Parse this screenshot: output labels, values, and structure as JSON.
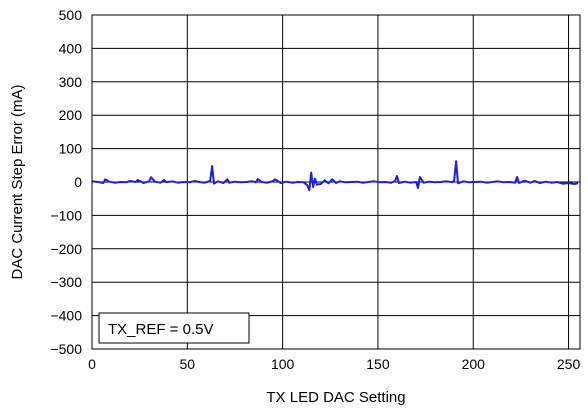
{
  "chart_data": {
    "type": "line",
    "title": "",
    "xlabel": "TX LED DAC Setting",
    "ylabel": "DAC Current Step Error (mA)",
    "xlim": [
      0,
      256
    ],
    "ylim": [
      -500,
      500
    ],
    "x_ticks": [
      0,
      50,
      100,
      150,
      200,
      250
    ],
    "x_tick_labels": [
      "0",
      "50",
      "100",
      "150",
      "200",
      "250"
    ],
    "y_ticks": [
      -500,
      -400,
      -300,
      -200,
      -100,
      0,
      100,
      200,
      300,
      400,
      500
    ],
    "y_tick_labels": [
      "−500",
      "−400",
      "−300",
      "−200",
      "−100",
      "0",
      "100",
      "200",
      "300",
      "400",
      "500"
    ],
    "grid": true,
    "annotation": "TX_REF = 0.5V",
    "colors": {
      "series": "#1f1fd6",
      "grid": "#000000",
      "background": "#ffffff"
    },
    "series": [
      {
        "x": [
          0,
          3,
          6,
          7,
          9,
          12,
          15,
          18,
          20,
          23,
          24,
          27,
          30,
          31,
          33,
          36,
          38,
          39,
          42,
          45,
          48,
          51,
          54,
          56,
          59,
          62,
          63,
          64,
          66,
          69,
          71,
          72,
          75,
          78,
          81,
          84,
          86,
          87,
          89,
          92,
          95,
          96,
          99,
          102,
          105,
          108,
          111,
          113,
          114,
          115,
          116,
          117,
          118,
          120,
          122,
          124,
          126,
          128,
          130,
          133,
          136,
          139,
          142,
          145,
          148,
          151,
          154,
          157,
          159,
          160,
          161,
          164,
          167,
          170,
          171,
          172,
          174,
          177,
          180,
          183,
          186,
          189,
          190,
          191,
          192,
          195,
          198,
          201,
          204,
          207,
          210,
          213,
          216,
          219,
          222,
          223,
          224,
          227,
          230,
          232,
          235,
          238,
          241,
          244,
          247,
          250,
          253,
          255
        ],
        "y": [
          2,
          0,
          -3,
          8,
          1,
          -2,
          0,
          -1,
          3,
          0,
          6,
          -3,
          2,
          14,
          1,
          -2,
          6,
          -1,
          2,
          -2,
          0,
          -1,
          3,
          0,
          -2,
          3,
          48,
          -5,
          2,
          -3,
          8,
          -2,
          1,
          -1,
          0,
          2,
          -1,
          9,
          0,
          -2,
          3,
          8,
          -3,
          1,
          -2,
          0,
          -1,
          -10,
          -25,
          28,
          -15,
          10,
          -8,
          -6,
          5,
          -4,
          8,
          -3,
          2,
          -1,
          0,
          1,
          -2,
          0,
          2,
          -1,
          0,
          -2,
          3,
          18,
          -3,
          1,
          -2,
          0,
          -18,
          15,
          -2,
          1,
          -1,
          0,
          2,
          -1,
          5,
          62,
          -4,
          2,
          -1,
          0,
          1,
          -2,
          0,
          2,
          -1,
          0,
          -2,
          15,
          -3,
          4,
          -2,
          3,
          -3,
          1,
          -2,
          0,
          -5,
          -3,
          -6,
          -4
        ]
      }
    ]
  }
}
